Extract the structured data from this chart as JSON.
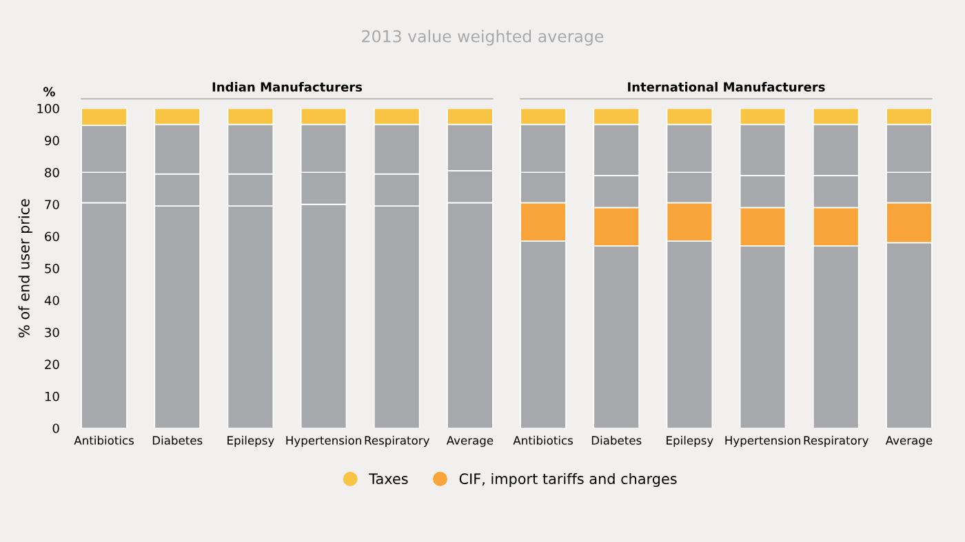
{
  "chart_data": {
    "type": "bar",
    "title": "2013 value weighted average",
    "ylabel": "% of end user price",
    "stacked": true,
    "categories": [
      "Antibiotics",
      "Diabetes",
      "Epilepsy",
      "Hypertension",
      "Respiratory",
      "Average",
      "Antibiotics",
      "Diabetes",
      "Epilepsy",
      "Hypertension",
      "Respiratory",
      "Average"
    ],
    "series": [
      {
        "color": "#a7a8ab",
        "values": [
          70.5,
          69.5,
          69.5,
          70,
          69.5,
          70.5,
          58.5,
          57,
          58.5,
          57,
          57,
          58
        ]
      },
      {
        "name": "CIF, import tariffs and charges",
        "color": "#f9a43a",
        "values": [
          0,
          0,
          0,
          0,
          0,
          0,
          12,
          12,
          12,
          12,
          12,
          12.5
        ]
      },
      {
        "color": "#a7a8ab",
        "values": [
          9.5,
          10,
          10,
          10,
          10,
          10,
          9.5,
          10,
          9.5,
          10,
          10,
          9.5
        ]
      },
      {
        "color": "#a7a8ab",
        "values": [
          14.7,
          15.5,
          15.5,
          15,
          15.5,
          14.5,
          15,
          16,
          15,
          16,
          16,
          15
        ]
      },
      {
        "name": "Taxes",
        "color": "#f9c344",
        "values": [
          5.3,
          5,
          5,
          5,
          5,
          5,
          5,
          5,
          5,
          5,
          5,
          5
        ]
      }
    ],
    "ylim": [
      0,
      100
    ],
    "yticks": [
      0,
      10,
      20,
      30,
      40,
      50,
      60,
      70,
      80,
      90,
      100
    ],
    "grid": false,
    "legend": "bottom",
    "annotations": [
      "Indian Manufacturers",
      "International Manufacturers",
      "%"
    ]
  }
}
